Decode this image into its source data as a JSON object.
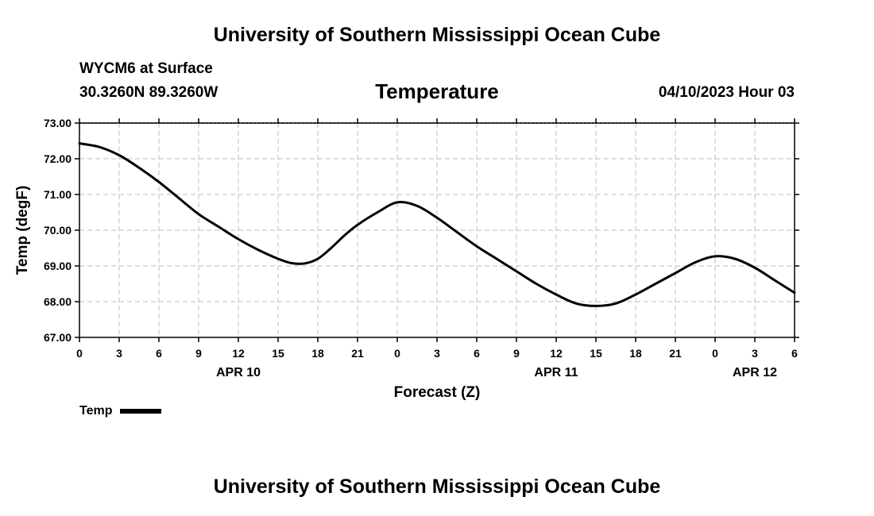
{
  "header": {
    "title": "University of Southern Mississippi Ocean Cube",
    "station": "WYCM6 at Surface",
    "coords": "30.3260N  89.3260W",
    "chart_title": "Temperature",
    "forecast_time": "04/10/2023 Hour 03"
  },
  "footer": {
    "title": "University of Southern Mississippi Ocean Cube"
  },
  "legend": {
    "label": "Temp"
  },
  "colors": {
    "line": "#000000",
    "grid": "#bbbbbb",
    "axis": "#000000"
  },
  "chart_data": {
    "type": "line",
    "title": "Temperature",
    "xlabel": "Forecast (Z)",
    "ylabel": "Temp (degF)",
    "ylim": [
      67.0,
      73.0
    ],
    "xlim": [
      0,
      54
    ],
    "x_unit": "hours from 04/10/2023 00Z",
    "yticks": [
      "67.00",
      "68.00",
      "69.00",
      "70.00",
      "71.00",
      "72.00",
      "73.00"
    ],
    "xtick_labels": [
      "0",
      "3",
      "6",
      "9",
      "12",
      "15",
      "18",
      "21",
      "0",
      "3",
      "6",
      "9",
      "12",
      "15",
      "18",
      "21",
      "0",
      "3",
      "6"
    ],
    "date_labels": [
      {
        "text": "APR 10",
        "x": 12
      },
      {
        "text": "APR 11",
        "x": 36
      },
      {
        "text": "APR 12",
        "x": 51
      }
    ],
    "series": [
      {
        "name": "Temp",
        "x": [
          0,
          1.5,
          3,
          4.5,
          6,
          7.5,
          9,
          10.5,
          12,
          13.5,
          15,
          16,
          17,
          18,
          19,
          20,
          21,
          22.5,
          24,
          25.5,
          27,
          28.5,
          30,
          31.5,
          33,
          34.5,
          36,
          37.5,
          39,
          40.5,
          42,
          43.5,
          45,
          46.5,
          48,
          49.5,
          51,
          52.5,
          54
        ],
        "values": [
          72.43,
          72.33,
          72.1,
          71.75,
          71.35,
          70.9,
          70.45,
          70.1,
          69.75,
          69.45,
          69.2,
          69.08,
          69.07,
          69.2,
          69.5,
          69.85,
          70.15,
          70.5,
          70.78,
          70.68,
          70.35,
          69.95,
          69.55,
          69.2,
          68.85,
          68.5,
          68.2,
          67.95,
          67.88,
          67.95,
          68.2,
          68.5,
          68.8,
          69.1,
          69.27,
          69.2,
          68.95,
          68.6,
          68.25
        ]
      }
    ]
  }
}
